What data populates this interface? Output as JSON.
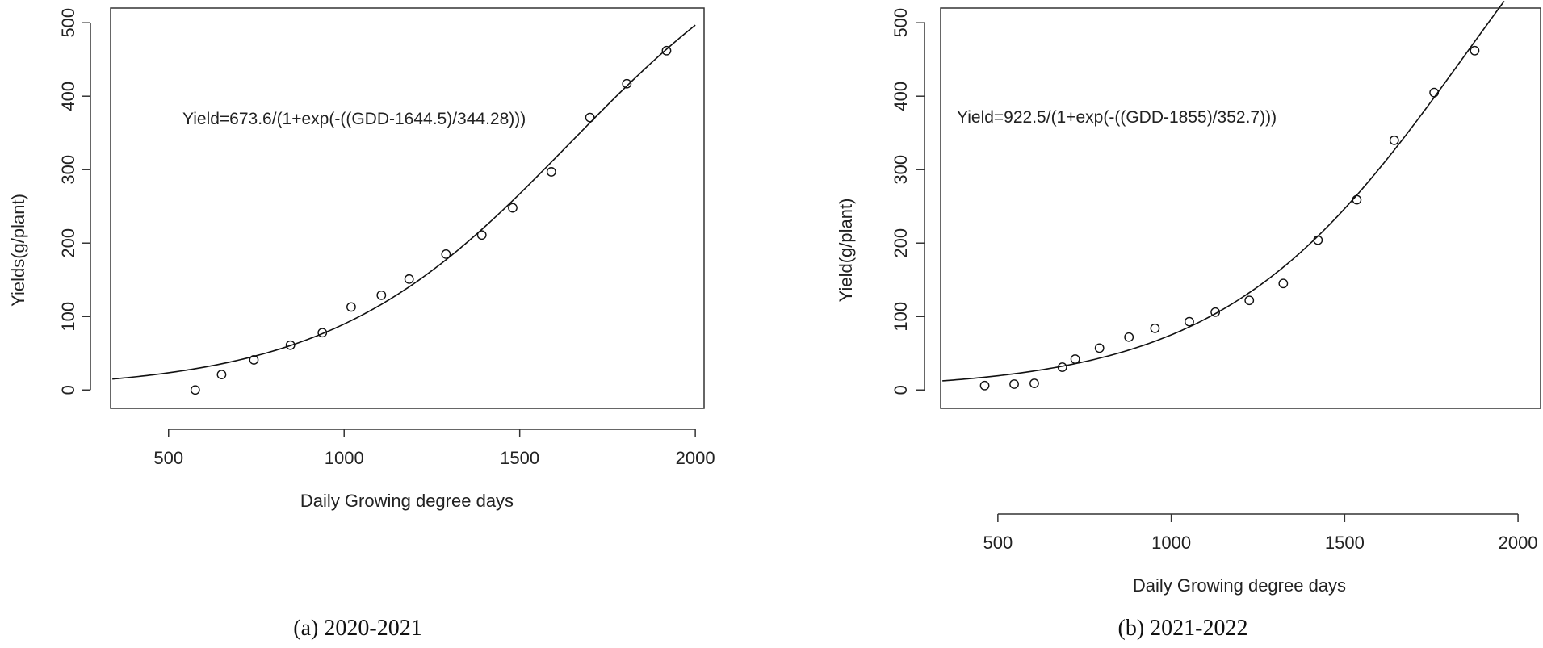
{
  "chart_data": [
    {
      "type": "scatter",
      "caption": "(a) 2020-2021",
      "xlabel": "Daily Growing degree days",
      "ylabel": "Yields(g/plant)",
      "equation": "Yield=673.6/(1+exp(-((GDD-1644.5)/344.28)))",
      "xlim": [
        335,
        2025
      ],
      "ylim": [
        -25,
        520
      ],
      "xticks": [
        500,
        1000,
        1500,
        2000
      ],
      "yticks": [
        0,
        100,
        200,
        300,
        400,
        500
      ],
      "fit": {
        "A": 673.6,
        "x0": 1644.5,
        "s": 344.28,
        "xmin": 340,
        "xmax": 2000
      },
      "x": [
        576,
        651,
        743,
        847,
        938,
        1020,
        1106,
        1185,
        1290,
        1392,
        1480,
        1590,
        1700,
        1805,
        1918
      ],
      "y": [
        0,
        21,
        41,
        61,
        78,
        113,
        129,
        151,
        185,
        211,
        248,
        297,
        371,
        417,
        462
      ],
      "grid": false
    },
    {
      "type": "scatter",
      "caption": "(b) 2021-2022",
      "xlabel": "Daily Growing degree days",
      "ylabel": "Yield(g/plant)",
      "equation": "Yield=922.5/(1+exp(-((GDD-1855)/352.7)))",
      "xlim": [
        335,
        2065
      ],
      "ylim": [
        -25,
        520
      ],
      "xticks": [
        500,
        1000,
        1500,
        2000
      ],
      "yticks": [
        0,
        100,
        200,
        300,
        400,
        500
      ],
      "fit": {
        "A": 922.5,
        "x0": 1855,
        "s": 352.7,
        "xmin": 340,
        "xmax": 1960
      },
      "x": [
        462,
        547,
        605,
        686,
        723,
        793,
        878,
        953,
        1052,
        1127,
        1225,
        1323,
        1423,
        1535,
        1643,
        1758,
        1875
      ],
      "y": [
        6,
        8,
        9,
        31,
        42,
        57,
        72,
        84,
        93,
        106,
        122,
        145,
        204,
        259,
        340,
        405,
        462
      ],
      "grid": false
    }
  ]
}
